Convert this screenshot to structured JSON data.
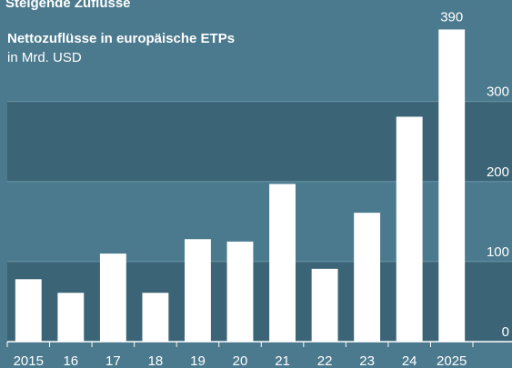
{
  "chart_data": {
    "type": "bar",
    "title": "Steigende Zuflüsse",
    "subtitle": "Nettozuflüsse in europäische ETPs",
    "unit_label": "in Mrd. USD",
    "categories": [
      "2015",
      "16",
      "17",
      "18",
      "19",
      "20",
      "21",
      "22",
      "23",
      "24",
      "2025"
    ],
    "values": [
      78,
      61,
      110,
      61,
      128,
      125,
      197,
      91,
      161,
      281,
      390
    ],
    "value_labels": [
      null,
      null,
      null,
      null,
      null,
      null,
      null,
      null,
      null,
      null,
      "390"
    ],
    "color": "#ffffff",
    "ylim": [
      0,
      420
    ],
    "yticks": [
      0,
      100,
      200,
      300
    ],
    "grid": true
  }
}
